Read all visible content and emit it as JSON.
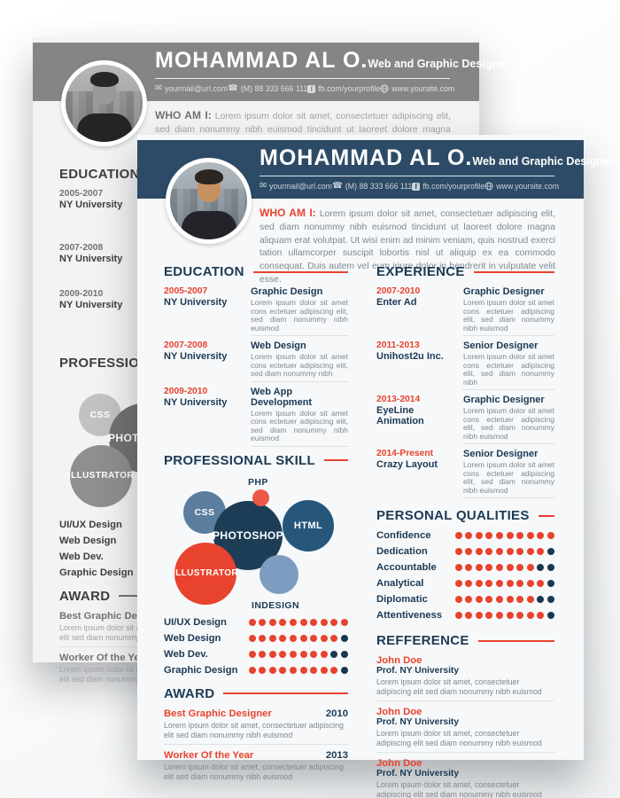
{
  "resume": {
    "name": "MOHAMMAD AL O.",
    "role": "Web and Graphic Designer",
    "contact": {
      "email": "yourmail@url.com",
      "phone": "(M) 88 333 666 111",
      "facebook": "fb.com/yourprofile",
      "facebook_glyph": "f",
      "website": "www.yoursite.com"
    },
    "about": {
      "label": "WHO AM I:",
      "text": "Lorem ipsum dolor sit amet, consectetuer adipiscing elit, sed diam nonummy nibh euismod tincidunt ut laoreet dolore magna aliquam erat volutpat. Ut wisi enim ad minim veniam, quis nostrud exerci tation ullamcorper suscipit lobortis nisl ut aliquip ex ea commodo consequat. Duis autem vel eum iriure dolor in hendrerit in vulputate velit esse."
    },
    "education": {
      "title": "EDUCATION",
      "items": [
        {
          "years": "2005-2007",
          "school": "NY University",
          "degree": "Graphic Design",
          "text": "Lorem ipsum dolor sit amet cons ectetuer adipiscing elit, sed diam nonummy nibh euismod"
        },
        {
          "years": "2007-2008",
          "school": "NY University",
          "degree": "Web Design",
          "text": "Lorem ipsum dolor sit amet cons ectetuer adipiscing elit, sed diam nonummy nibh"
        },
        {
          "years": "2009-2010",
          "school": "NY University",
          "degree": "Web App Development",
          "text": "Lorem ipsum dolor sit amet cons ectetuer adipiscing elit, sed diam nonummy nibh euismod"
        }
      ]
    },
    "experience": {
      "title": "EXPERIENCE",
      "items": [
        {
          "years": "2007-2010",
          "company": "Enter Ad",
          "position": "Graphic Designer",
          "text": "Lorem ipsum dolor sit amet cons ectetuer adipiscing elit, sed diam nonummy nibh euismod"
        },
        {
          "years": "2011-2013",
          "company": "Unihost2u Inc.",
          "position": "Senior Designer",
          "text": "Lorem ipsum dolor sit amet cons ectetuer adipiscing elit, sed diam nonummy nibh"
        },
        {
          "years": "2013-2014",
          "company": "EyeLine Animation",
          "position": "Graphic Designer",
          "text": "Lorem ipsum dolor sit amet cons ectetuer adipiscing elit, sed diam nonummy nibh euismod"
        },
        {
          "years": "2014-Present",
          "company": "Crazy Layout",
          "position": "Senior Designer",
          "text": "Lorem ipsum dolor sit amet cons ectetuer adipiscing elit, sed diam nonummy nibh euismod"
        }
      ]
    },
    "skills": {
      "title": "PROFESSIONAL SKILL",
      "bubbles": [
        {
          "label": "PHP"
        },
        {
          "label": "CSS"
        },
        {
          "label": "PHOTOSHOP"
        },
        {
          "label": "HTML"
        },
        {
          "label": "ILLUSTRATOR"
        },
        {
          "label": "INDESIGN"
        }
      ],
      "ratings": [
        {
          "label": "UI/UX Design",
          "score": 10
        },
        {
          "label": "Web Design",
          "score": 9
        },
        {
          "label": "Web Dev.",
          "score": 8
        },
        {
          "label": "Graphic Design",
          "score": 9
        }
      ]
    },
    "qualities": {
      "title": "PERSONAL QUALITIES",
      "items": [
        {
          "label": "Confidence",
          "score": 10
        },
        {
          "label": "Dedication",
          "score": 9
        },
        {
          "label": "Accountable",
          "score": 8
        },
        {
          "label": "Analytical",
          "score": 9
        },
        {
          "label": "Diplomatic",
          "score": 8
        },
        {
          "label": "Attentiveness",
          "score": 9
        }
      ]
    },
    "dot_max": 10,
    "awards": {
      "title": "AWARD",
      "items": [
        {
          "title": "Best Graphic Designer",
          "year": "2010",
          "text": "Lorem ipsum dolor sit amet, consectetuer adipiscing elit sed diam nonummy nibh euismod"
        },
        {
          "title": "Worker Of the Year",
          "year": "2013",
          "text": "Lorem ipsum dolor sit amet, consectetuer adipiscing elit sed diam nonummy nibh euismod"
        }
      ]
    },
    "references": {
      "title": "REFFERENCE",
      "items": [
        {
          "name": "John Doe",
          "org": "Prof. NY University",
          "text": "Lorem ipsum dolor sit amet, consectetuer adipiscing elit sed diam nonummy nibh euismod"
        },
        {
          "name": "John Doe",
          "org": "Prof. NY University",
          "text": "Lorem ipsum dolor sit amet, consectetuer adipiscing elit sed diam nonummy nibh euismod"
        },
        {
          "name": "John Doe",
          "org": "Prof. NY University",
          "text": "Lorem ipsum dolor sit amet, consectetuer adipiscing elit sed diam nonummy nibh euismod"
        }
      ]
    }
  },
  "colors": {
    "front_page": {
      "header_band": "#2d4b66",
      "accent_red": "#e8432e",
      "heading_navy": "#1b3a55",
      "body_text": "#7e8893",
      "dot_on": "#e8432e",
      "dot_off": "#1b3750",
      "page_bg": "#f7f8f9",
      "bubble_css": "#5b7e9f",
      "bubble_photoshop": "#1d3d56",
      "bubble_html": "#27567b",
      "bubble_illustrator": "#e8432e",
      "bubble_indesign": "#7d9cbf",
      "bubble_php": "#ee5848"
    },
    "back_page": {
      "header_band": "#858585",
      "accent": "#737373",
      "heading": "#3e3e3e",
      "page_bg": "#f3f3f3"
    }
  }
}
